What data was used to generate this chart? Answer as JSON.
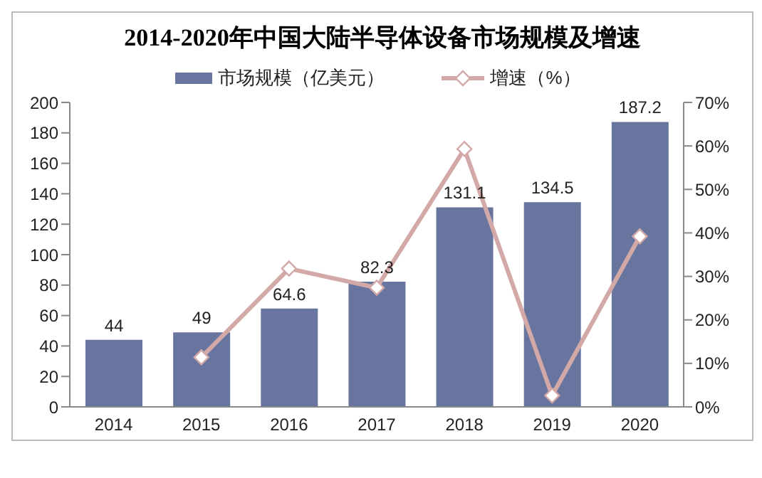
{
  "chart_data": {
    "type": "bar",
    "title": "2014-2020年中国大陆半导体设备市场规模及增速",
    "categories": [
      "2014",
      "2015",
      "2016",
      "2017",
      "2018",
      "2019",
      "2020"
    ],
    "series": [
      {
        "name": "市场规模（亿美元）",
        "color": "#68759f",
        "values": [
          44,
          49,
          64.6,
          82.3,
          131.1,
          134.5,
          187.2
        ],
        "value_labels": [
          "44",
          "49",
          "64.6",
          "82.3",
          "131.1",
          "134.5",
          "187.2"
        ]
      },
      {
        "name": "增速（%）",
        "type": "line",
        "axis": "y2",
        "color": "#d3a9a7",
        "marker": "diamond",
        "values": [
          null,
          11.4,
          31.8,
          27.4,
          59.3,
          2.6,
          39.2
        ]
      }
    ],
    "ylim": [
      0,
      200
    ],
    "yticks": [
      0,
      20,
      40,
      60,
      80,
      100,
      120,
      140,
      160,
      180,
      200
    ],
    "y2lim": [
      0,
      70
    ],
    "y2ticks": [
      {
        "value": 0,
        "label": "0%"
      },
      {
        "value": 10,
        "label": "10%"
      },
      {
        "value": 20,
        "label": "20%"
      },
      {
        "value": 30,
        "label": "30%"
      },
      {
        "value": 40,
        "label": "40%"
      },
      {
        "value": 50,
        "label": "50%"
      },
      {
        "value": 60,
        "label": "60%"
      },
      {
        "value": 70,
        "label": "70%"
      }
    ],
    "grid": false,
    "legend": "top"
  }
}
